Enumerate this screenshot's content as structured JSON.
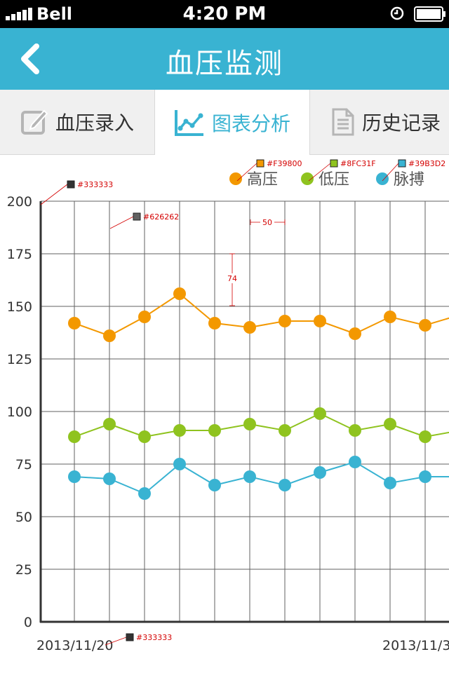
{
  "status_bar": {
    "carrier": "Bell",
    "time": "4:20 PM"
  },
  "nav": {
    "title": "血压监测",
    "back_icon": "chevron-left-icon"
  },
  "tabs": [
    {
      "label": "血压录入",
      "icon": "edit-icon",
      "active": false
    },
    {
      "label": "图表分析",
      "icon": "line-chart-icon",
      "active": true
    },
    {
      "label": "历史记录",
      "icon": "document-icon",
      "active": false
    }
  ],
  "colors": {
    "primary": "#39B3D2",
    "high": "#F39800",
    "low": "#8FC31F",
    "pulse": "#39B3D2",
    "axis": "#333333",
    "grid": "#626262"
  },
  "annotations": {
    "high_color": "#F39800",
    "low_color": "#8FC31F",
    "pulse_color": "#39B3D2",
    "axis_color_y": "#333333",
    "grid_color": "#626262",
    "axis_color_x": "#333333",
    "spacing_x": "50",
    "spacing_y": "74"
  },
  "chart_data": {
    "type": "line",
    "x_labels": [
      "2013/11/20",
      "2013/11/3"
    ],
    "legend_position": "top-right",
    "grid": true,
    "ylim": [
      0,
      200
    ],
    "y_ticks": [
      0,
      25,
      50,
      75,
      100,
      125,
      150,
      175,
      200
    ],
    "series": [
      {
        "name": "高压",
        "color": "#F39800",
        "values": [
          142,
          136,
          145,
          156,
          142,
          140,
          143,
          143,
          137,
          145,
          141,
          146
        ]
      },
      {
        "name": "低压",
        "color": "#8FC31F",
        "values": [
          88,
          94,
          88,
          91,
          91,
          94,
          91,
          99,
          91,
          94,
          88,
          91
        ]
      },
      {
        "name": "脉搏",
        "color": "#39B3D2",
        "values": [
          69,
          68,
          61,
          75,
          65,
          69,
          65,
          71,
          76,
          66,
          69,
          69
        ]
      }
    ]
  }
}
